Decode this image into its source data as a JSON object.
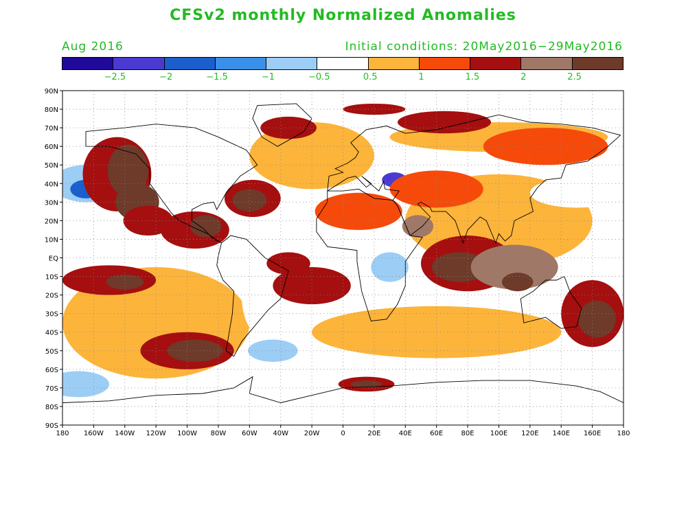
{
  "title": "CFSv2 monthly Normalized Anomalies",
  "forecast_month": "Aug 2016",
  "initial_conditions": "Initial conditions: 20May2016−29May2016",
  "colorbar": {
    "colors": [
      "#200a9a",
      "#4a3ad2",
      "#1a5fcc",
      "#3a8fe8",
      "#9ccdf5",
      "#ffffff",
      "#fcb43a",
      "#f64a0a",
      "#a50f0f",
      "#a07868",
      "#6e3a2a"
    ],
    "labels": [
      "−2.5",
      "−2",
      "−1.5",
      "−1",
      "−0.5",
      "0.5",
      "1",
      "1.5",
      "2",
      "2.5"
    ]
  },
  "lat_labels": [
    "90N",
    "80N",
    "70N",
    "60N",
    "50N",
    "40N",
    "30N",
    "20N",
    "10N",
    "EQ",
    "10S",
    "20S",
    "30S",
    "40S",
    "50S",
    "60S",
    "70S",
    "80S",
    "90S"
  ],
  "lon_labels": [
    "180",
    "160W",
    "140W",
    "120W",
    "100W",
    "80W",
    "60W",
    "40W",
    "20W",
    "0",
    "20E",
    "40E",
    "60E",
    "80E",
    "100E",
    "120E",
    "140E",
    "160E",
    "180"
  ],
  "anomaly_regions": [
    {
      "lon": -165,
      "lat": 40,
      "rx": 22,
      "ry": 10,
      "level": -1
    },
    {
      "lon": -165,
      "lat": 37,
      "rx": 10,
      "ry": 5,
      "level": -2
    },
    {
      "lon": -145,
      "lat": 45,
      "rx": 22,
      "ry": 20,
      "level": 1.5
    },
    {
      "lon": -138,
      "lat": 47,
      "rx": 13,
      "ry": 14,
      "level": 2.5
    },
    {
      "lon": -132,
      "lat": 30,
      "rx": 14,
      "ry": 10,
      "level": 2.5
    },
    {
      "lon": -125,
      "lat": 20,
      "rx": 16,
      "ry": 8,
      "level": 1.5
    },
    {
      "lon": -95,
      "lat": 15,
      "rx": 22,
      "ry": 10,
      "level": 1.5
    },
    {
      "lon": -88,
      "lat": 17,
      "rx": 10,
      "ry": 6,
      "level": 2.5
    },
    {
      "lon": -58,
      "lat": 32,
      "rx": 18,
      "ry": 10,
      "level": 1.5
    },
    {
      "lon": -60,
      "lat": 31,
      "rx": 11,
      "ry": 6,
      "level": 2.5
    },
    {
      "lon": -35,
      "lat": 70,
      "rx": 18,
      "ry": 6,
      "level": 1.5
    },
    {
      "lon": -150,
      "lat": -12,
      "rx": 30,
      "ry": 8,
      "level": 1.5
    },
    {
      "lon": -140,
      "lat": -13,
      "rx": 12,
      "ry": 4,
      "level": 2.5
    },
    {
      "lon": -100,
      "lat": -50,
      "rx": 30,
      "ry": 10,
      "level": 1.5
    },
    {
      "lon": -95,
      "lat": -50,
      "rx": 18,
      "ry": 6,
      "level": 2.5
    },
    {
      "lon": -45,
      "lat": -50,
      "rx": 16,
      "ry": 6,
      "level": -1
    },
    {
      "lon": -170,
      "lat": -68,
      "rx": 20,
      "ry": 7,
      "level": -1
    },
    {
      "lon": -20,
      "lat": -15,
      "rx": 25,
      "ry": 10,
      "level": 1.5
    },
    {
      "lon": -35,
      "lat": -3,
      "rx": 14,
      "ry": 6,
      "level": 1.5
    },
    {
      "lon": 10,
      "lat": 25,
      "rx": 28,
      "ry": 10,
      "level": 1
    },
    {
      "lon": 48,
      "lat": 17,
      "rx": 10,
      "ry": 6,
      "level": 2
    },
    {
      "lon": 30,
      "lat": -5,
      "rx": 12,
      "ry": 8,
      "level": -1
    },
    {
      "lon": 33,
      "lat": 42,
      "rx": 8,
      "ry": 4,
      "level": -2.5
    },
    {
      "lon": 20,
      "lat": 80,
      "rx": 20,
      "ry": 3,
      "level": 1.5
    },
    {
      "lon": 65,
      "lat": 73,
      "rx": 30,
      "ry": 6,
      "level": 1.5
    },
    {
      "lon": 60,
      "lat": 37,
      "rx": 30,
      "ry": 10,
      "level": 1
    },
    {
      "lon": 80,
      "lat": -3,
      "rx": 30,
      "ry": 15,
      "level": 1.5
    },
    {
      "lon": 75,
      "lat": -5,
      "rx": 18,
      "ry": 8,
      "level": 2.5
    },
    {
      "lon": 110,
      "lat": -5,
      "rx": 28,
      "ry": 12,
      "level": 2
    },
    {
      "lon": 112,
      "lat": -13,
      "rx": 10,
      "ry": 5,
      "level": 2.5
    },
    {
      "lon": 160,
      "lat": -30,
      "rx": 20,
      "ry": 18,
      "level": 1.5
    },
    {
      "lon": 163,
      "lat": -33,
      "rx": 12,
      "ry": 10,
      "level": 2.5
    },
    {
      "lon": 150,
      "lat": 35,
      "rx": 30,
      "ry": 8,
      "level": -0.5
    },
    {
      "lon": 130,
      "lat": 60,
      "rx": 40,
      "ry": 10,
      "level": 1
    },
    {
      "lon": 15,
      "lat": -68,
      "rx": 18,
      "ry": 4,
      "level": 1.5
    },
    {
      "lon": 15,
      "lat": -68,
      "rx": 10,
      "ry": 2,
      "level": 2.5
    },
    {
      "lon": -55,
      "lat": -20,
      "rx": 10,
      "ry": 20,
      "level": -0.5
    },
    {
      "lon": 75,
      "lat": -45,
      "rx": 40,
      "ry": 6,
      "level": 0.5
    }
  ]
}
